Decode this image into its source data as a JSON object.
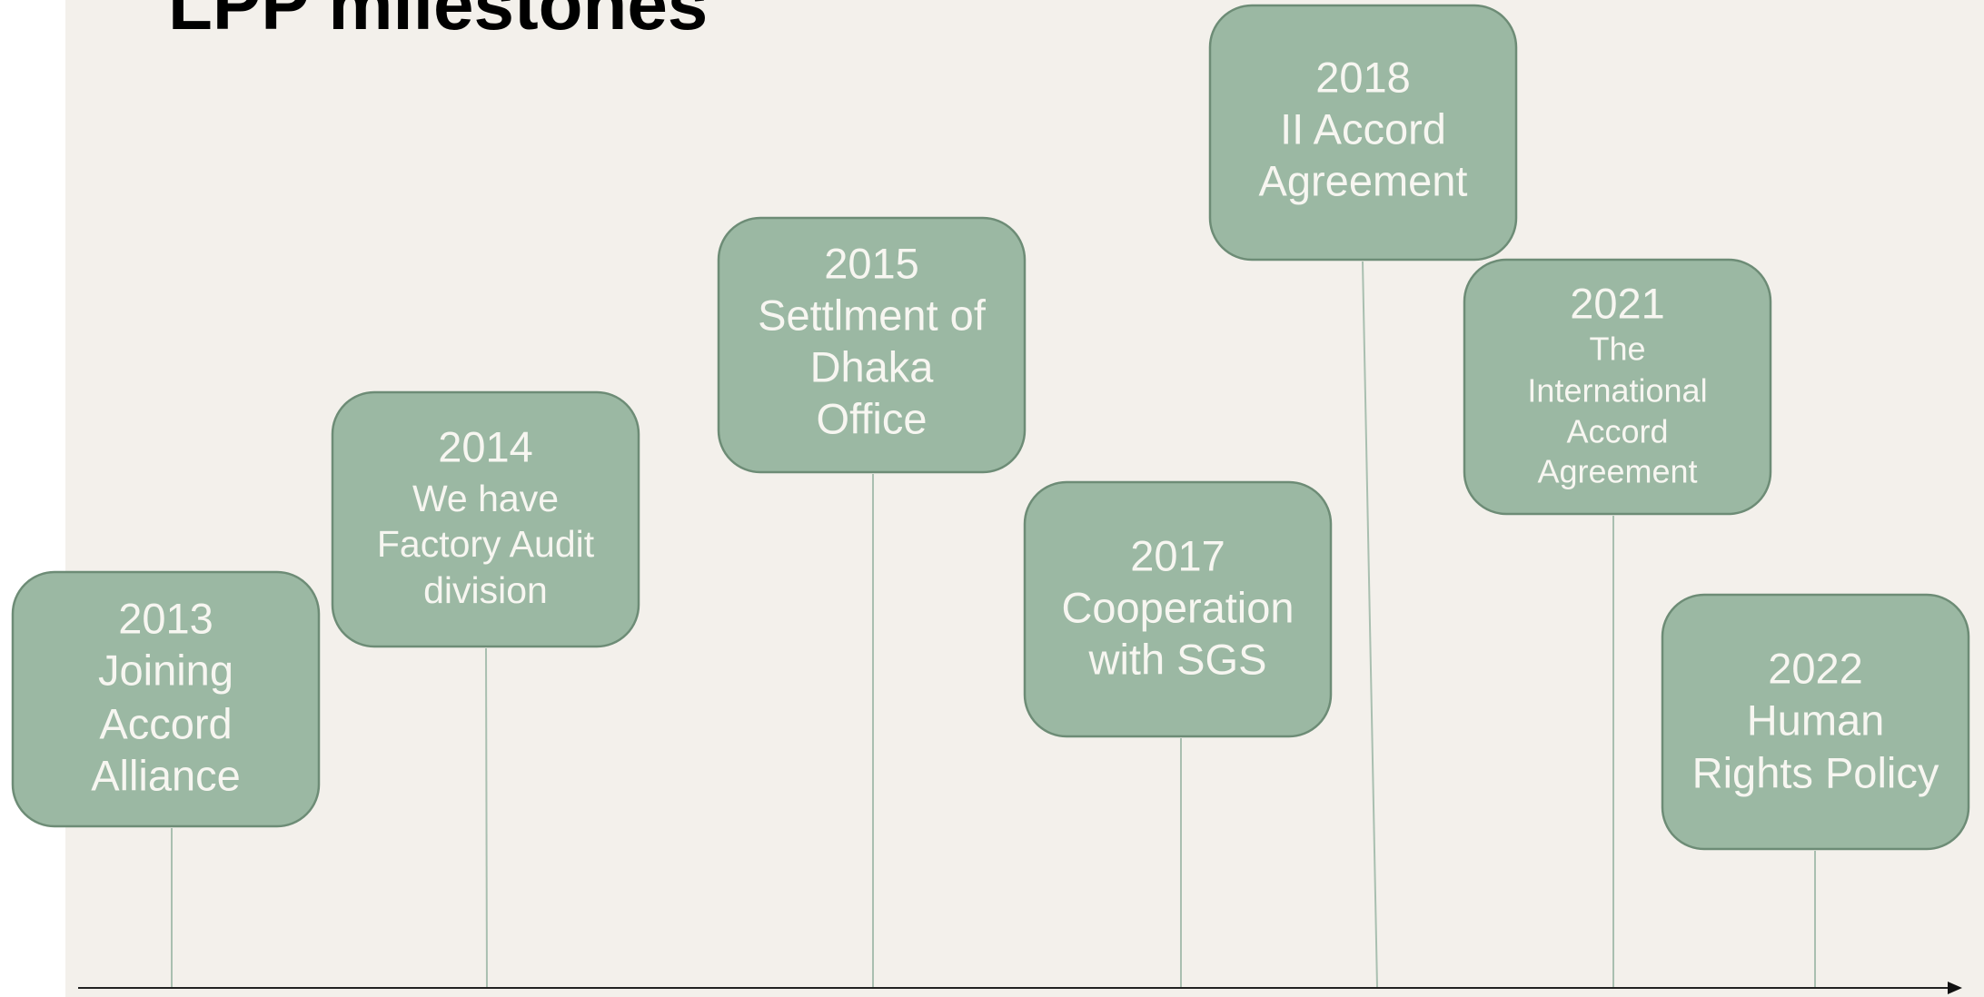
{
  "title": "LPP milestones",
  "milestones": [
    {
      "year": "2013",
      "lines": [
        "Joining",
        "Accord",
        "Alliance"
      ]
    },
    {
      "year": "2014",
      "lines": [
        "We have",
        "Factory Audit",
        "division"
      ]
    },
    {
      "year": "2015",
      "lines": [
        "Settlment of",
        "Dhaka",
        "Office"
      ]
    },
    {
      "year": "2017",
      "lines": [
        "Cooperation",
        "with SGS"
      ]
    },
    {
      "year": "2018",
      "lines": [
        "II Accord",
        "Agreement"
      ]
    },
    {
      "year": "2021",
      "lines": [
        "The",
        "International",
        "Accord",
        "Agreement"
      ]
    },
    {
      "year": "2022",
      "lines": [
        "Human",
        "Rights Policy"
      ]
    }
  ]
}
